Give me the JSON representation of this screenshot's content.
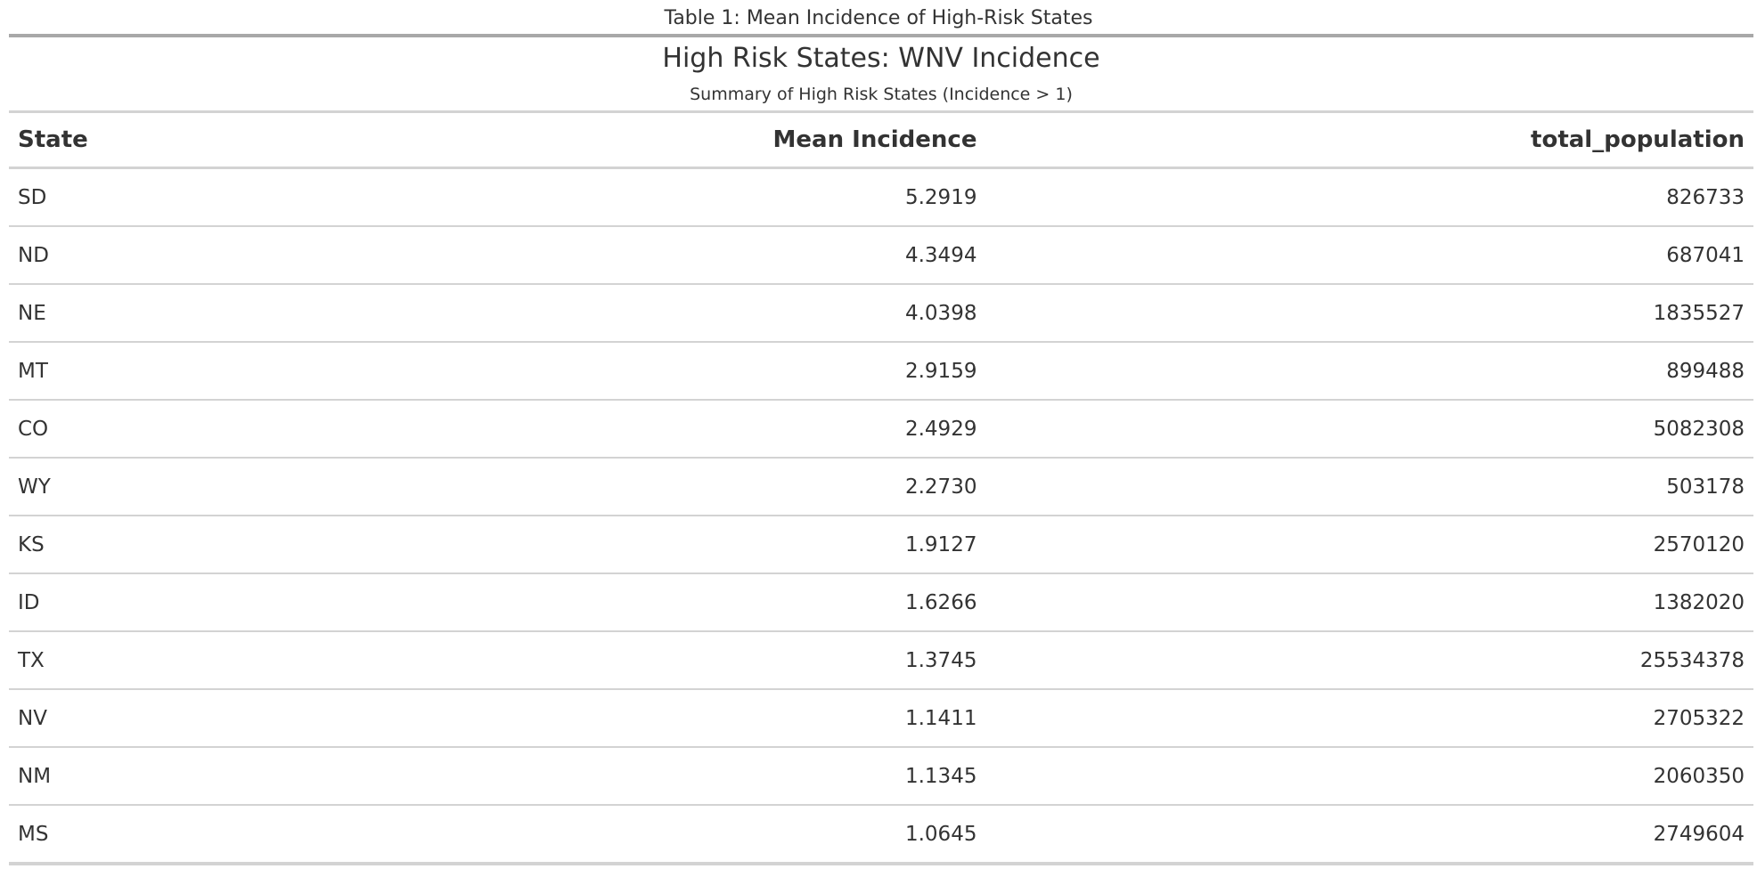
{
  "caption": "Table 1: Mean Incidence of High-Risk States",
  "table": {
    "title": "High Risk States: WNV Incidence",
    "subtitle": "Summary of High Risk States (Incidence > 1)",
    "columns": {
      "state": "State",
      "mean_incidence": "Mean Incidence",
      "total_population": "total_population"
    },
    "rows": [
      {
        "state": "SD",
        "mean_incidence": "5.2919",
        "total_population": "826733"
      },
      {
        "state": "ND",
        "mean_incidence": "4.3494",
        "total_population": "687041"
      },
      {
        "state": "NE",
        "mean_incidence": "4.0398",
        "total_population": "1835527"
      },
      {
        "state": "MT",
        "mean_incidence": "2.9159",
        "total_population": "899488"
      },
      {
        "state": "CO",
        "mean_incidence": "2.4929",
        "total_population": "5082308"
      },
      {
        "state": "WY",
        "mean_incidence": "2.2730",
        "total_population": "503178"
      },
      {
        "state": "KS",
        "mean_incidence": "1.9127",
        "total_population": "2570120"
      },
      {
        "state": "ID",
        "mean_incidence": "1.6266",
        "total_population": "1382020"
      },
      {
        "state": "TX",
        "mean_incidence": "1.3745",
        "total_population": "25534378"
      },
      {
        "state": "NV",
        "mean_incidence": "1.1411",
        "total_population": "2705322"
      },
      {
        "state": "NM",
        "mean_incidence": "1.1345",
        "total_population": "2060350"
      },
      {
        "state": "MS",
        "mean_incidence": "1.0645",
        "total_population": "2749604"
      }
    ]
  }
}
